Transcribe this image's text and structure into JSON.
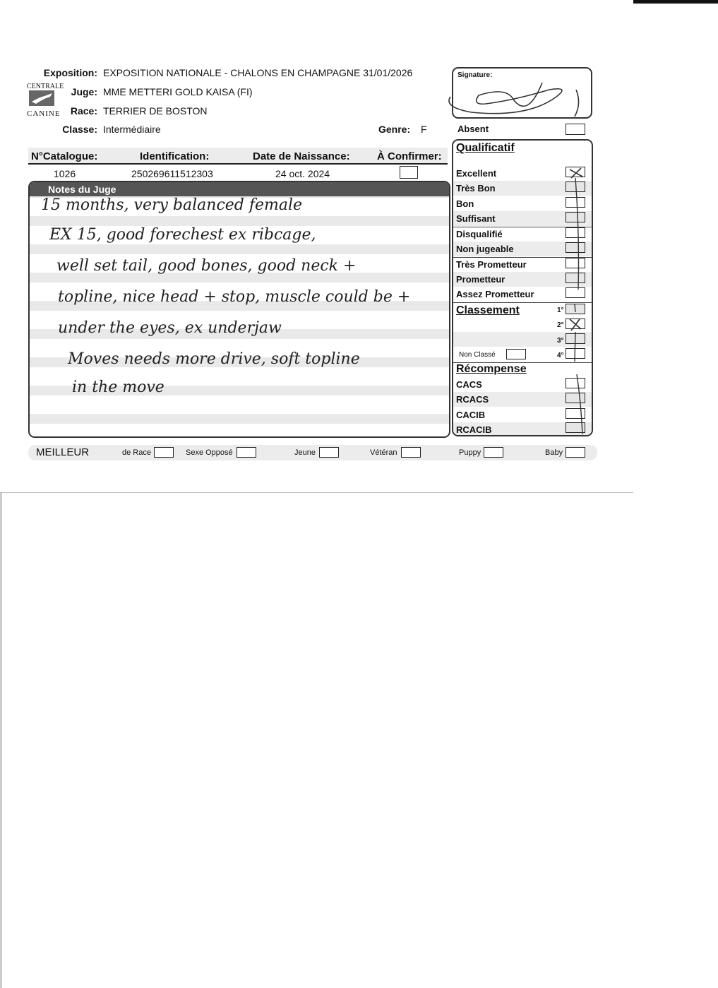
{
  "header": {
    "exposition_label": "Exposition:",
    "exposition": "EXPOSITION NATIONALE - CHALONS EN CHAMPAGNE 31/01/2026",
    "juge_label": "Juge:",
    "juge": "MME METTERI GOLD KAISA (FI)",
    "race_label": "Race:",
    "race": "TERRIER DE BOSTON",
    "classe_label": "Classe:",
    "classe": "Intermédiaire",
    "genre_label": "Genre:",
    "genre": "F",
    "logo_top": "CENTRALE",
    "logo_bottom": "CANINE"
  },
  "table": {
    "headers": [
      "N°Catalogue:",
      "Identification:",
      "Date de Naissance:",
      "À Confirmer:"
    ],
    "catalogue": "1026",
    "identification": "250269611512303",
    "date_naissance": "24 oct. 2024",
    "a_confirmer": false
  },
  "notes": {
    "title": "Notes du Juge",
    "lines": [
      "15 months, very balanced female",
      "EX 15, good forechest ex ribcage,",
      "well set tail, good bones, good neck +",
      "topline, nice head + stop, muscle could be +",
      "under the eyes, ex underjaw",
      "Moves needs more drive, soft topline",
      "in the move"
    ]
  },
  "signature": {
    "label": "Signature:"
  },
  "absent": {
    "label": "Absent",
    "checked": false
  },
  "qualificatif": {
    "title": "Qualificatif",
    "items": [
      {
        "label": "Excellent",
        "checked": true
      },
      {
        "label": "Très Bon",
        "checked": false
      },
      {
        "label": "Bon",
        "checked": false
      },
      {
        "label": "Suffisant",
        "checked": false
      },
      {
        "label": "Disqualifié",
        "checked": false
      },
      {
        "label": "Non jugeable",
        "checked": false
      },
      {
        "label": "Très Prometteur",
        "checked": false
      },
      {
        "label": "Prometteur",
        "checked": false
      },
      {
        "label": "Assez Prometteur",
        "checked": false
      }
    ]
  },
  "classement": {
    "title": "Classement",
    "places": [
      {
        "label": "1°",
        "checked": false
      },
      {
        "label": "2°",
        "checked": true
      },
      {
        "label": "3°",
        "checked": false
      },
      {
        "label": "4°",
        "checked": false
      }
    ],
    "non_classe": "Non Classé"
  },
  "recompense": {
    "title": "Récompense",
    "items": [
      {
        "label": "CACS",
        "checked": false
      },
      {
        "label": "RCACS",
        "checked": false
      },
      {
        "label": "CACIB",
        "checked": false
      },
      {
        "label": "RCACIB",
        "checked": false
      }
    ]
  },
  "meilleur": {
    "title": "MEILLEUR",
    "items": [
      "de Race",
      "Sexe Opposé",
      "Jeune",
      "Vétéran",
      "Puppy",
      "Baby"
    ]
  },
  "colors": {
    "ink": "#222222",
    "band": "#555555",
    "stripe": "#e9e9e9"
  }
}
